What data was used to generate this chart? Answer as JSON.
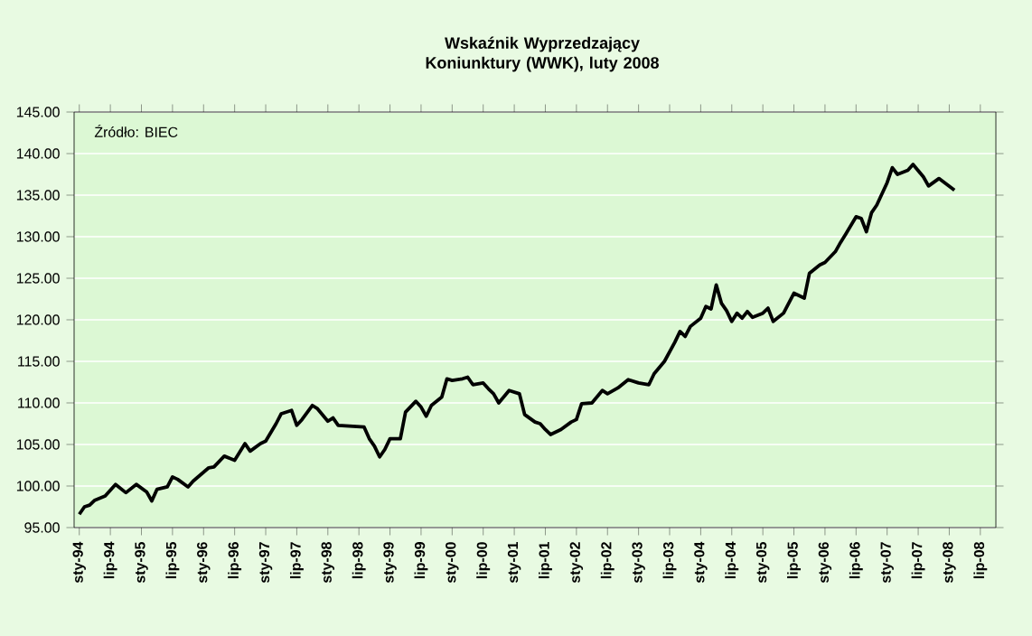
{
  "chart_data": {
    "type": "line",
    "title": "Wskaźnik Wyprzedzający Koniunktury (WWK), luty 2008",
    "annotations": [
      "Źródło: BIEC"
    ],
    "x": [
      "1994-01",
      "1994-02",
      "1994-03",
      "1994-04",
      "1994-06",
      "1994-08",
      "1994-10",
      "1994-12",
      "1995-02",
      "1995-03",
      "1995-04",
      "1995-06",
      "1995-07",
      "1995-08",
      "1995-10",
      "1995-11",
      "1996-02",
      "1996-03",
      "1996-05",
      "1996-07",
      "1996-08",
      "1996-09",
      "1996-10",
      "1996-12",
      "1997-01",
      "1997-03",
      "1997-04",
      "1997-06",
      "1997-07",
      "1997-08",
      "1997-10",
      "1997-11",
      "1998-01",
      "1998-02",
      "1998-03",
      "1998-08",
      "1998-09",
      "1998-10",
      "1998-11",
      "1998-12",
      "1999-01",
      "1999-03",
      "1999-04",
      "1999-06",
      "1999-07",
      "1999-08",
      "1999-09",
      "1999-11",
      "1999-12",
      "2000-01",
      "2000-03",
      "2000-04",
      "2000-05",
      "2000-07",
      "2000-08",
      "2000-09",
      "2000-10",
      "2000-12",
      "2001-02",
      "2001-03",
      "2001-05",
      "2001-06",
      "2001-07",
      "2001-08",
      "2001-10",
      "2001-12",
      "2002-01",
      "2002-02",
      "2002-04",
      "2002-06",
      "2002-07",
      "2002-09",
      "2002-11",
      "2003-01",
      "2003-03",
      "2003-04",
      "2003-06",
      "2003-08",
      "2003-09",
      "2003-10",
      "2003-11",
      "2004-01",
      "2004-02",
      "2004-03",
      "2004-04",
      "2004-05",
      "2004-06",
      "2004-07",
      "2004-08",
      "2004-09",
      "2004-10",
      "2004-11",
      "2005-01",
      "2005-02",
      "2005-03",
      "2005-05",
      "2005-06",
      "2005-07",
      "2005-09",
      "2005-10",
      "2005-12",
      "2006-01",
      "2006-03",
      "2006-04",
      "2006-05",
      "2006-07",
      "2006-08",
      "2006-09",
      "2006-10",
      "2006-11",
      "2007-01",
      "2007-02",
      "2007-03",
      "2007-05",
      "2007-06",
      "2007-08",
      "2007-09",
      "2007-11",
      "2008-02"
    ],
    "series": [
      {
        "color": "#000000",
        "values": [
          96.6,
          97.5,
          97.7,
          98.3,
          98.8,
          100.2,
          99.2,
          100.2,
          99.3,
          98.2,
          99.6,
          99.9,
          101.1,
          100.8,
          99.9,
          100.6,
          102.2,
          102.3,
          103.6,
          103.1,
          104.1,
          105.1,
          104.2,
          105.1,
          105.4,
          107.5,
          108.7,
          109.1,
          107.3,
          108.0,
          109.7,
          109.3,
          107.8,
          108.2,
          107.3,
          107.1,
          105.7,
          104.8,
          103.5,
          104.4,
          105.7,
          105.7,
          108.9,
          110.2,
          109.5,
          108.4,
          109.7,
          110.7,
          112.9,
          112.7,
          112.9,
          113.1,
          112.2,
          112.4,
          111.7,
          111.1,
          110.0,
          111.5,
          111.1,
          108.6,
          107.7,
          107.5,
          106.8,
          106.2,
          106.8,
          107.7,
          108.0,
          109.9,
          110.0,
          111.5,
          111.1,
          111.8,
          112.8,
          112.4,
          112.2,
          113.5,
          115.0,
          117.3,
          118.6,
          118.0,
          119.2,
          120.2,
          121.6,
          121.3,
          124.2,
          122.0,
          121.1,
          119.8,
          120.8,
          120.2,
          121.0,
          120.3,
          120.8,
          121.4,
          119.8,
          120.8,
          122.0,
          123.2,
          122.6,
          125.6,
          126.6,
          126.9,
          128.2,
          129.3,
          130.3,
          132.4,
          132.2,
          130.6,
          132.9,
          133.8,
          136.5,
          138.3,
          137.5,
          138.0,
          138.7,
          137.2,
          136.1,
          137.0,
          135.6
        ]
      }
    ],
    "xlim": [
      "1993-12",
      "2008-10"
    ],
    "xticks": [
      {
        "value": "1994-01",
        "label": "sty-94"
      },
      {
        "value": "1994-07",
        "label": "lip-94"
      },
      {
        "value": "1995-01",
        "label": "sty-95"
      },
      {
        "value": "1995-07",
        "label": "lip-95"
      },
      {
        "value": "1996-01",
        "label": "sty-96"
      },
      {
        "value": "1996-07",
        "label": "lip-96"
      },
      {
        "value": "1997-01",
        "label": "sty-97"
      },
      {
        "value": "1997-07",
        "label": "lip-97"
      },
      {
        "value": "1998-01",
        "label": "sty-98"
      },
      {
        "value": "1998-07",
        "label": "lip-98"
      },
      {
        "value": "1999-01",
        "label": "sty-99"
      },
      {
        "value": "1999-07",
        "label": "lip-99"
      },
      {
        "value": "2000-01",
        "label": "sty-00"
      },
      {
        "value": "2000-07",
        "label": "lip-00"
      },
      {
        "value": "2001-01",
        "label": "sty-01"
      },
      {
        "value": "2001-07",
        "label": "lip-01"
      },
      {
        "value": "2002-01",
        "label": "sty-02"
      },
      {
        "value": "2002-07",
        "label": "lip-02"
      },
      {
        "value": "2003-01",
        "label": "sty-03"
      },
      {
        "value": "2003-07",
        "label": "lip-03"
      },
      {
        "value": "2004-01",
        "label": "sty-04"
      },
      {
        "value": "2004-07",
        "label": "lip-04"
      },
      {
        "value": "2005-01",
        "label": "sty-05"
      },
      {
        "value": "2005-07",
        "label": "lip-05"
      },
      {
        "value": "2006-01",
        "label": "sty-06"
      },
      {
        "value": "2006-07",
        "label": "lip-06"
      },
      {
        "value": "2007-01",
        "label": "sty-07"
      },
      {
        "value": "2007-07",
        "label": "lip-07"
      },
      {
        "value": "2008-01",
        "label": "sty-08"
      },
      {
        "value": "2008-07",
        "label": "lip-08"
      }
    ],
    "ylim": [
      95,
      145
    ],
    "yticks": [
      {
        "value": 95,
        "label": "95.00"
      },
      {
        "value": 100,
        "label": "100.00"
      },
      {
        "value": 105,
        "label": "105.00"
      },
      {
        "value": 110,
        "label": "110.00"
      },
      {
        "value": 115,
        "label": "115.00"
      },
      {
        "value": 120,
        "label": "120.00"
      },
      {
        "value": 125,
        "label": "125.00"
      },
      {
        "value": 130,
        "label": "130.00"
      },
      {
        "value": 135,
        "label": "135.00"
      },
      {
        "value": 140,
        "label": "140.00"
      },
      {
        "value": 145,
        "label": "145.00"
      }
    ],
    "grid": "y",
    "marker": "none",
    "line_style": "solid"
  }
}
